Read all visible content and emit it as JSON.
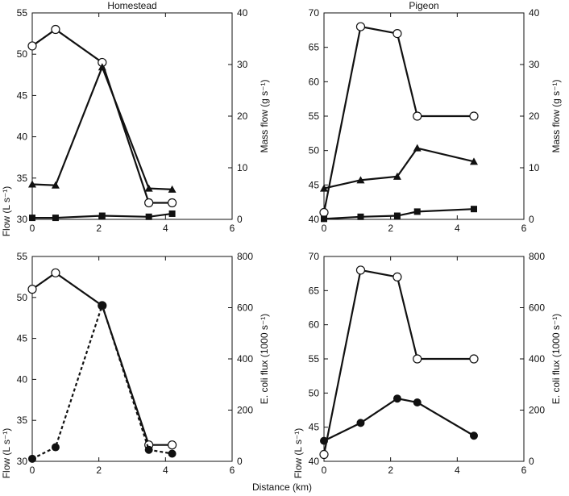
{
  "chart_data": [
    {
      "type": "line",
      "title": "Homestead",
      "ylabel": "Flow (L s⁻¹)",
      "y2label": "Mass flow (g s⁻¹)",
      "xlim": [
        0,
        6
      ],
      "ylim": [
        30,
        55
      ],
      "y2lim": [
        0,
        40
      ],
      "xticks": [
        "0",
        "2",
        "4",
        "6"
      ],
      "yticks": [
        "30",
        "35",
        "40",
        "45",
        "50",
        "55"
      ],
      "y2ticks": [
        "0",
        "10",
        "20",
        "30",
        "40"
      ],
      "series": [
        {
          "marker": "open-circle",
          "axis": "left",
          "style": "solid",
          "x": [
            0,
            0.7,
            2.1,
            3.5,
            4.2
          ],
          "y": [
            51,
            53,
            49,
            32,
            32
          ]
        },
        {
          "marker": "filled-triangle",
          "axis": "right",
          "style": "solid",
          "x": [
            0,
            0.7,
            2.1,
            3.5,
            4.2
          ],
          "y": [
            6.8,
            6.6,
            29.5,
            6.0,
            5.8
          ]
        },
        {
          "marker": "filled-square",
          "axis": "right",
          "style": "solid",
          "x": [
            0,
            0.7,
            2.1,
            3.5,
            4.2
          ],
          "y": [
            0.3,
            0.3,
            0.7,
            0.5,
            1.1
          ]
        }
      ]
    },
    {
      "type": "line",
      "title": "Pigeon",
      "ylabel": "",
      "y2label": "Mass flow (g s⁻¹)",
      "xlim": [
        0,
        6
      ],
      "ylim": [
        40,
        70
      ],
      "y2lim": [
        0,
        40
      ],
      "xticks": [
        "0",
        "2",
        "4",
        "6"
      ],
      "yticks": [
        "40",
        "45",
        "50",
        "55",
        "60",
        "65",
        "70"
      ],
      "y2ticks": [
        "0",
        "10",
        "20",
        "30",
        "40"
      ],
      "series": [
        {
          "marker": "open-circle",
          "axis": "left",
          "style": "solid",
          "x": [
            0,
            1.1,
            2.2,
            2.8,
            4.5
          ],
          "y": [
            41,
            68,
            67,
            55,
            55
          ]
        },
        {
          "marker": "filled-triangle",
          "axis": "right",
          "style": "solid",
          "x": [
            0,
            1.1,
            2.2,
            2.8,
            4.5
          ],
          "y": [
            6.0,
            7.6,
            8.3,
            13.8,
            11.2
          ]
        },
        {
          "marker": "filled-square",
          "axis": "right",
          "style": "solid",
          "x": [
            0,
            1.1,
            2.2,
            2.8,
            4.5
          ],
          "y": [
            0.1,
            0.5,
            0.7,
            1.5,
            2.0
          ]
        }
      ]
    },
    {
      "type": "line",
      "title": "",
      "ylabel": "Flow (L s⁻¹)",
      "y2label": "E. coli flux (1000 s⁻¹)",
      "xlim": [
        0,
        6
      ],
      "ylim": [
        30,
        55
      ],
      "y2lim": [
        0,
        800
      ],
      "xticks": [
        "0",
        "2",
        "4",
        "6"
      ],
      "yticks": [
        "30",
        "35",
        "40",
        "45",
        "50",
        "55"
      ],
      "y2ticks": [
        "0",
        "200",
        "400",
        "600",
        "800"
      ],
      "series": [
        {
          "marker": "open-circle",
          "axis": "left",
          "style": "solid",
          "x": [
            0,
            0.7,
            2.1,
            3.5,
            4.2
          ],
          "y": [
            51,
            53,
            49,
            32,
            32
          ]
        },
        {
          "marker": "filled-circle",
          "axis": "right",
          "style": "dashed",
          "x": [
            0,
            0.7,
            2.1,
            3.5,
            4.2
          ],
          "y": [
            10,
            55,
            610,
            45,
            30
          ]
        }
      ]
    },
    {
      "type": "line",
      "title": "",
      "ylabel": "Flow (L s⁻¹)",
      "y2label": "E. coli flux (1000 s⁻¹)",
      "xlim": [
        0,
        6
      ],
      "ylim": [
        40,
        70
      ],
      "y2lim": [
        0,
        800
      ],
      "xticks": [
        "0",
        "2",
        "4",
        "6"
      ],
      "yticks": [
        "40",
        "45",
        "50",
        "55",
        "60",
        "65",
        "70"
      ],
      "y2ticks": [
        "0",
        "200",
        "400",
        "600",
        "800"
      ],
      "series": [
        {
          "marker": "open-circle",
          "axis": "left",
          "style": "solid",
          "x": [
            0,
            1.1,
            2.2,
            2.8,
            4.5
          ],
          "y": [
            41,
            68,
            67,
            55,
            55
          ]
        },
        {
          "marker": "filled-circle",
          "axis": "right",
          "style": "solid",
          "x": [
            0,
            1.1,
            2.2,
            2.8,
            4.5
          ],
          "y": [
            80,
            150,
            245,
            230,
            100
          ]
        }
      ]
    }
  ],
  "xlabel": "Distance (km)"
}
